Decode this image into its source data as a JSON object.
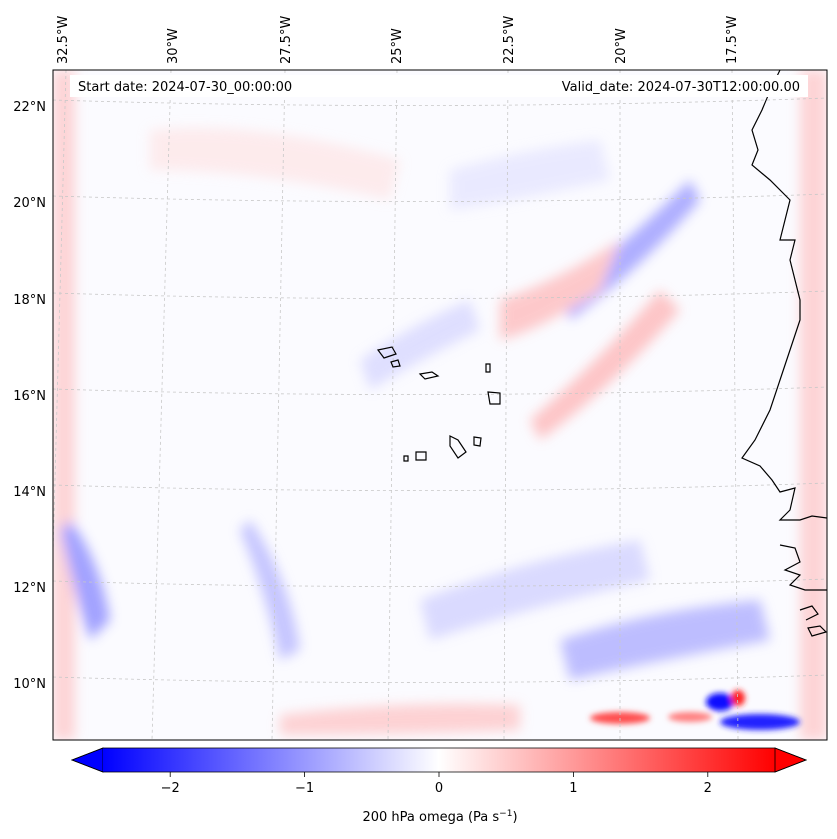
{
  "header": {
    "start_date": "Start date: 2024-07-30_00:00:00",
    "valid_date": "Valid_date: 2024-07-30T12:00:00.00"
  },
  "longitude_labels": [
    "32.5°W",
    "30°W",
    "27.5°W",
    "25°W",
    "22.5°W",
    "20°W",
    "17.5°W"
  ],
  "latitude_labels": [
    "22°N",
    "20°N",
    "18°N",
    "16°N",
    "14°N",
    "12°N",
    "10°N"
  ],
  "colorbar": {
    "ticks": [
      "−2",
      "−1",
      "0",
      "1",
      "2"
    ],
    "tick_values": [
      -2,
      -1,
      0,
      1,
      2
    ],
    "range": [
      -2.5,
      2.5
    ],
    "colormap": "bwr",
    "label": "200 hPa omega (Pa s",
    "label_sup": "−1",
    "label_close": ")"
  },
  "colors": {
    "negative": "#0000ff",
    "zero": "#ffffff",
    "positive": "#ff0000",
    "coastline": "#000000",
    "gridline": "#c8c8c8"
  }
}
